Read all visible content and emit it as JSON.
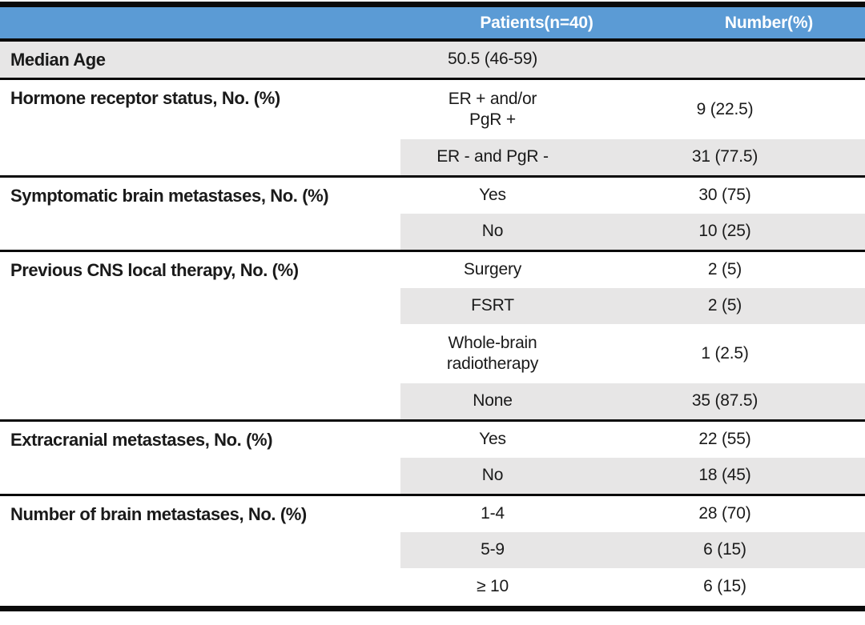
{
  "colors": {
    "header_bg": "#5B9BD5",
    "header_text": "#FFFFFF",
    "row_shade": "#E7E6E6",
    "rule": "#0A0A0A",
    "text": "#1A1A1A"
  },
  "header": {
    "category": "",
    "patients": "Patients(n=40)",
    "number": "Number(%)"
  },
  "groups": [
    {
      "label": "Median Age",
      "rows": [
        {
          "patients": "50.5 (46-59)",
          "number": ""
        }
      ]
    },
    {
      "label": "Hormone receptor status, No. (%)",
      "rows": [
        {
          "patients": "ER + and/or\nPgR +",
          "number": "9 (22.5)"
        },
        {
          "patients": "ER - and PgR -",
          "number": "31 (77.5)"
        }
      ]
    },
    {
      "label": "Symptomatic brain metastases, No. (%)",
      "rows": [
        {
          "patients": "Yes",
          "number": "30 (75)"
        },
        {
          "patients": "No",
          "number": "10 (25)"
        }
      ]
    },
    {
      "label": "Previous CNS local therapy, No. (%)",
      "rows": [
        {
          "patients": "Surgery",
          "number": "2 (5)"
        },
        {
          "patients": "FSRT",
          "number": "2 (5)"
        },
        {
          "patients": "Whole-brain\nradiotherapy",
          "number": "1 (2.5)"
        },
        {
          "patients": "None",
          "number": "35 (87.5)"
        }
      ]
    },
    {
      "label": "Extracranial metastases, No. (%)",
      "rows": [
        {
          "patients": "Yes",
          "number": "22 (55)"
        },
        {
          "patients": "No",
          "number": "18 (45)"
        }
      ]
    },
    {
      "label": "Number of brain metastases, No. (%)",
      "rows": [
        {
          "patients": "1-4",
          "number": "28 (70)"
        },
        {
          "patients": "5-9",
          "number": "6 (15)"
        },
        {
          "patients": "≥ 10",
          "number": "6 (15)"
        }
      ]
    }
  ]
}
